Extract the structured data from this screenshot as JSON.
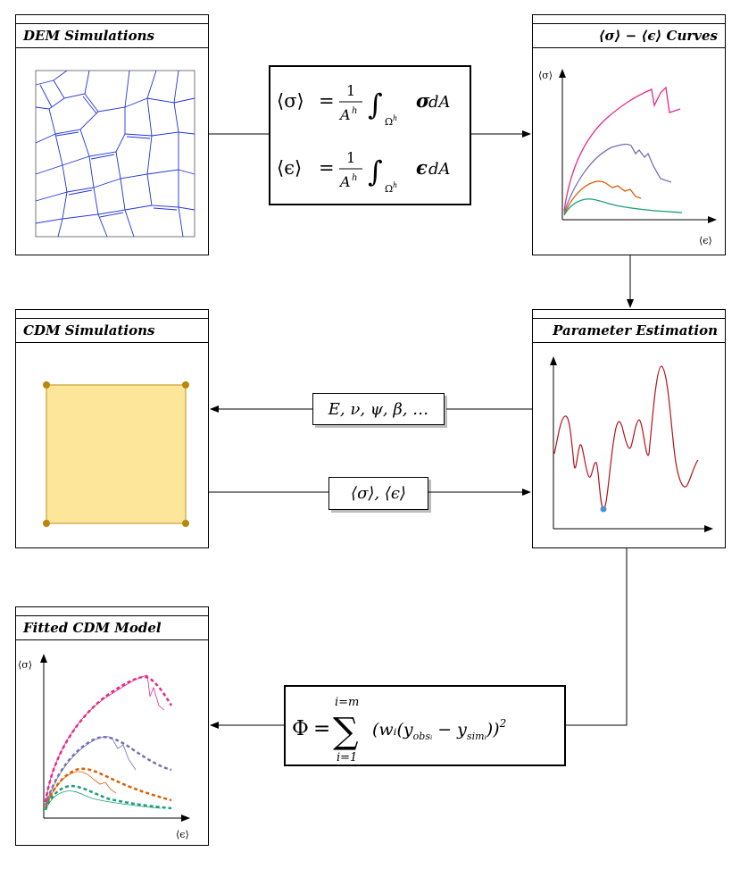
{
  "panels": {
    "dem": {
      "title": "DEM Simulations"
    },
    "curves": {
      "title": "⟨σ⟩ − ⟨ϵ⟩ Curves",
      "y_label": "⟨σ⟩",
      "x_label": "⟨ϵ⟩"
    },
    "cdm": {
      "title": "CDM Simulations"
    },
    "param": {
      "title": "Parameter Estimation"
    },
    "fitted": {
      "title": "Fitted CDM Model",
      "y_label": "⟨σ⟩",
      "x_label": "⟨ϵ⟩"
    }
  },
  "equations": {
    "sigma_lhs": "⟨σ⟩",
    "epsilon_lhs": "⟨ϵ⟩",
    "equals": "=",
    "one": "1",
    "area": "A",
    "area_sup": "h",
    "integral": "∫",
    "domain": "Ω",
    "domain_sup": "h",
    "sigma_integrand": "σ",
    "epsilon_integrand": "ϵ",
    "dA": "dA"
  },
  "parameters_box": {
    "label": "E, ν, ψ, β, …"
  },
  "averages_box": {
    "label": "⟨σ⟩, ⟨ϵ⟩"
  },
  "objective": {
    "phi": "Φ",
    "equals": "=",
    "sum": "∑",
    "upper": "i=m",
    "lower": "i=1",
    "term": "(wᵢ(y",
    "obs": "obsᵢ",
    "minus": " − y",
    "sim": "simᵢ",
    "close": "))",
    "power": "2"
  },
  "colors": {
    "grain_lines": "#2233dd",
    "cdm_fill": "#fde59a",
    "cdm_border": "#c8a030",
    "cdm_node": "#b8860b",
    "curve_pink": "#e7298a",
    "curve_purple": "#7570b3",
    "curve_orange": "#d95f02",
    "curve_green": "#1b9e77",
    "param_curve": "#b5121b",
    "param_min_point": "#4a90d9"
  }
}
